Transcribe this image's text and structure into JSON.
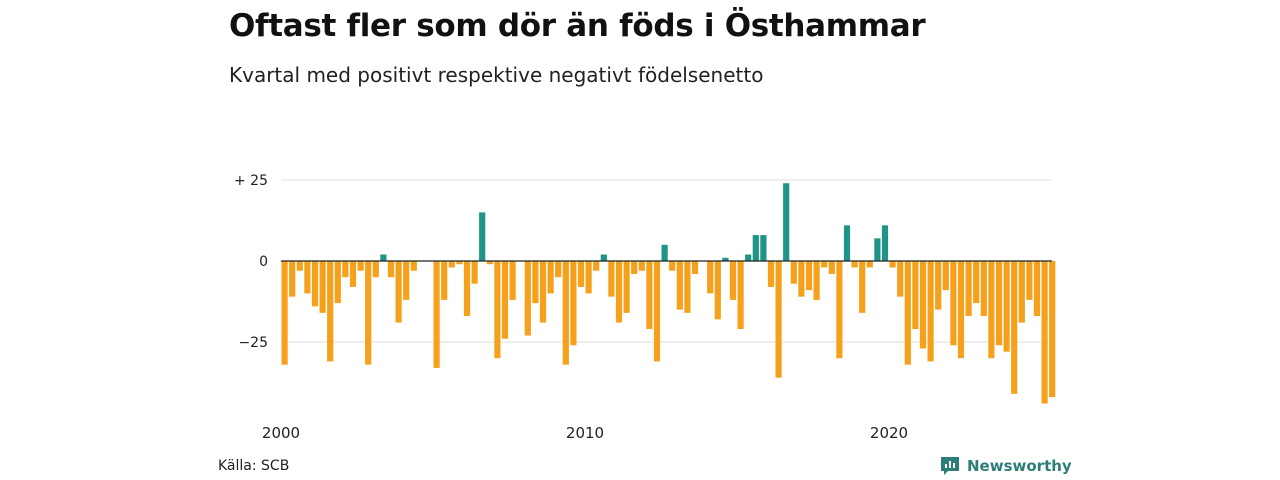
{
  "title": "Oftast fler som dör än föds i Östhammar",
  "subtitle": "Kvartal med positivt respektive negativt födelsenetto",
  "source": "Källa: SCB",
  "brand": "Newsworthy",
  "colors": {
    "positive": "#1f9587",
    "negative": "#f5a11c",
    "grid": "#dddddd",
    "zero": "#222222"
  },
  "chart_data": {
    "type": "bar",
    "title": "Oftast fler som dör än föds i Östhammar",
    "subtitle": "Kvartal med positivt respektive negativt födelsenetto",
    "xlabel": "",
    "ylabel": "",
    "y_ticks": [
      {
        "value": 25,
        "label": "+ 25"
      },
      {
        "value": 0,
        "label": "0"
      },
      {
        "value": -25,
        "label": "−25"
      }
    ],
    "x_ticks": [
      {
        "value": 2000,
        "label": "2000"
      },
      {
        "value": 2010,
        "label": "2010"
      },
      {
        "value": 2020,
        "label": "2020"
      }
    ],
    "ylim": [
      -45,
      25
    ],
    "x_start": 2000,
    "periods_per_year": 4,
    "grid": true,
    "values": [
      -32,
      -11,
      -3,
      -10,
      -14,
      -16,
      -31,
      -13,
      -5,
      -8,
      -3,
      -32,
      -5,
      2,
      -5,
      -19,
      -12,
      -3,
      0,
      0,
      -33,
      -12,
      -2,
      -1,
      -17,
      -7,
      15,
      -1,
      -30,
      -24,
      -12,
      0,
      -23,
      -13,
      -19,
      -10,
      -5,
      -32,
      -26,
      -8,
      -10,
      -3,
      2,
      -11,
      -19,
      -16,
      -4,
      -3,
      -21,
      -31,
      5,
      -3,
      -15,
      -16,
      -4,
      0,
      -10,
      -18,
      1,
      -12,
      -21,
      2,
      8,
      8,
      -8,
      -36,
      24,
      -7,
      -11,
      -9,
      -12,
      -2,
      -4,
      -30,
      11,
      -2,
      -16,
      -2,
      7,
      11,
      -2,
      -11,
      -32,
      -21,
      -27,
      -31,
      -15,
      -9,
      -26,
      -30,
      -17,
      -13,
      -17,
      -30,
      -26,
      -28,
      -41,
      -19,
      -12,
      -17,
      -44,
      -42
    ]
  }
}
